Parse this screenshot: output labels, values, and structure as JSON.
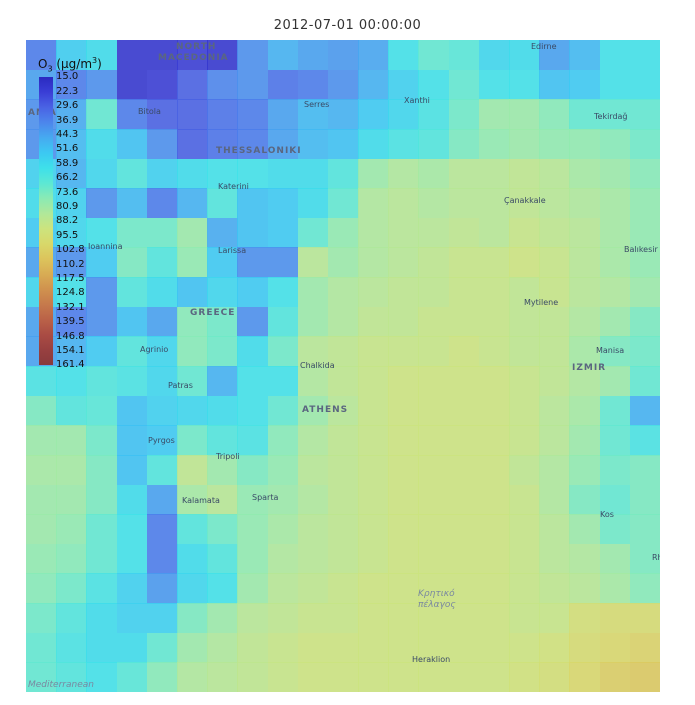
{
  "title": "2012-07-01 00:00:00",
  "legend": {
    "species": "O",
    "subscript": "3",
    "unit_open": " (μg/m",
    "unit_sup": "3",
    "unit_close": ")",
    "ticks": [
      "15.0",
      "22.3",
      "29.6",
      "36.9",
      "44.3",
      "51.6",
      "58.9",
      "66.2",
      "73.6",
      "80.9",
      "88.2",
      "95.5",
      "102.8",
      "110.2",
      "117.5",
      "124.8",
      "132.1",
      "139.5",
      "146.8",
      "154.1",
      "161.4"
    ],
    "colors": [
      "#2a2ac0",
      "#3a3ed6",
      "#4a63e4",
      "#4c86ec",
      "#46aaf0",
      "#3cc8f2",
      "#3ee0ea",
      "#5ce8d4",
      "#8aeab4",
      "#b0e89a",
      "#cce47e",
      "#d8d86a",
      "#dcc45c",
      "#d8ac54",
      "#d0924e",
      "#c67a4c",
      "#ba6248",
      "#aa4c44",
      "#984040",
      "#883a3c"
    ]
  },
  "places": [
    {
      "name": "NORTH",
      "kind": "country"
    },
    {
      "name": "MACEDONIA",
      "kind": "country"
    },
    {
      "name": "GREECE",
      "kind": "country"
    },
    {
      "name": "ATHENS",
      "kind": "country"
    },
    {
      "name": "IZMIR",
      "kind": "country"
    },
    {
      "name": "THESSALONIKI",
      "kind": "country"
    },
    {
      "name": "Edirne",
      "kind": "city"
    },
    {
      "name": "Xanthi",
      "kind": "city"
    },
    {
      "name": "Serres",
      "kind": "city"
    },
    {
      "name": "Bitola",
      "kind": "city"
    },
    {
      "name": "Tekirdağ",
      "kind": "city"
    },
    {
      "name": "Katerini",
      "kind": "city"
    },
    {
      "name": "Çanakkale",
      "kind": "city"
    },
    {
      "name": "Ioannina",
      "kind": "city"
    },
    {
      "name": "Larissa",
      "kind": "city"
    },
    {
      "name": "Balıkesir",
      "kind": "city"
    },
    {
      "name": "Mytilene",
      "kind": "city"
    },
    {
      "name": "Agrinio",
      "kind": "city"
    },
    {
      "name": "Chalkida",
      "kind": "city"
    },
    {
      "name": "Manisa",
      "kind": "city"
    },
    {
      "name": "Patras",
      "kind": "city"
    },
    {
      "name": "Pyrgos",
      "kind": "city"
    },
    {
      "name": "Tripoli",
      "kind": "city"
    },
    {
      "name": "Sparta",
      "kind": "city"
    },
    {
      "name": "Kalamata",
      "kind": "city"
    },
    {
      "name": "Kos",
      "kind": "city"
    },
    {
      "name": "Rho",
      "kind": "city"
    },
    {
      "name": "Heraklion",
      "kind": "city"
    },
    {
      "name": "Κρητικό",
      "kind": "sea"
    },
    {
      "name": "πέλαγος",
      "kind": "sea"
    },
    {
      "name": "Mediterranean",
      "kind": "sea"
    },
    {
      "name": "ANIA",
      "kind": "country"
    }
  ],
  "grid": {
    "cols": 21,
    "rows": 22,
    "values": [
      [
        36,
        55,
        60,
        20,
        20,
        22,
        20,
        40,
        48,
        44,
        42,
        45,
        62,
        70,
        68,
        58,
        60,
        44,
        50,
        62,
        62
      ],
      [
        44,
        36,
        40,
        20,
        22,
        30,
        38,
        40,
        34,
        36,
        40,
        48,
        56,
        62,
        70,
        62,
        62,
        52,
        54,
        62,
        62
      ],
      [
        40,
        46,
        70,
        36,
        30,
        30,
        34,
        36,
        44,
        50,
        48,
        54,
        58,
        64,
        72,
        80,
        80,
        76,
        70,
        70,
        70
      ],
      [
        40,
        50,
        60,
        52,
        40,
        30,
        34,
        36,
        44,
        50,
        52,
        60,
        64,
        66,
        74,
        78,
        80,
        78,
        78,
        76,
        72
      ],
      [
        56,
        48,
        58,
        66,
        56,
        60,
        62,
        62,
        60,
        60,
        66,
        80,
        84,
        82,
        86,
        86,
        88,
        86,
        82,
        80,
        76
      ],
      [
        60,
        56,
        40,
        50,
        36,
        48,
        66,
        52,
        54,
        60,
        70,
        84,
        86,
        84,
        86,
        86,
        88,
        86,
        84,
        82,
        78
      ],
      [
        54,
        58,
        62,
        72,
        72,
        80,
        46,
        52,
        54,
        70,
        78,
        84,
        86,
        86,
        88,
        86,
        90,
        88,
        86,
        82,
        78
      ],
      [
        44,
        40,
        54,
        74,
        66,
        78,
        54,
        40,
        40,
        86,
        80,
        84,
        86,
        88,
        90,
        90,
        92,
        90,
        86,
        82,
        78
      ],
      [
        58,
        62,
        40,
        66,
        60,
        52,
        58,
        54,
        62,
        80,
        84,
        86,
        88,
        88,
        90,
        90,
        88,
        90,
        86,
        84,
        80
      ],
      [
        44,
        36,
        40,
        52,
        44,
        76,
        72,
        40,
        66,
        80,
        84,
        88,
        88,
        90,
        90,
        90,
        88,
        88,
        84,
        80,
        74
      ],
      [
        44,
        48,
        54,
        66,
        58,
        76,
        72,
        60,
        72,
        86,
        88,
        90,
        90,
        90,
        92,
        90,
        88,
        88,
        82,
        74,
        72
      ],
      [
        64,
        62,
        66,
        64,
        58,
        70,
        48,
        62,
        62,
        84,
        88,
        90,
        92,
        92,
        92,
        92,
        90,
        88,
        84,
        80,
        70
      ],
      [
        74,
        66,
        68,
        52,
        56,
        58,
        60,
        62,
        70,
        80,
        86,
        90,
        92,
        92,
        92,
        92,
        90,
        86,
        82,
        70,
        48
      ],
      [
        80,
        80,
        72,
        52,
        54,
        72,
        66,
        64,
        76,
        84,
        88,
        90,
        92,
        92,
        92,
        92,
        90,
        86,
        80,
        70,
        64
      ],
      [
        82,
        82,
        74,
        52,
        66,
        88,
        80,
        74,
        78,
        86,
        88,
        90,
        92,
        92,
        92,
        92,
        88,
        84,
        78,
        72,
        74
      ],
      [
        80,
        80,
        74,
        60,
        44,
        82,
        86,
        78,
        80,
        84,
        88,
        90,
        92,
        92,
        92,
        92,
        90,
        84,
        74,
        70,
        74
      ],
      [
        80,
        78,
        70,
        62,
        36,
        66,
        72,
        78,
        82,
        86,
        88,
        90,
        92,
        92,
        92,
        92,
        90,
        86,
        80,
        72,
        74
      ],
      [
        78,
        76,
        70,
        62,
        36,
        60,
        66,
        78,
        84,
        86,
        88,
        90,
        92,
        92,
        92,
        92,
        90,
        86,
        84,
        80,
        74
      ],
      [
        76,
        72,
        64,
        56,
        42,
        58,
        62,
        80,
        86,
        88,
        90,
        92,
        92,
        92,
        92,
        92,
        90,
        88,
        86,
        82,
        76
      ],
      [
        72,
        66,
        60,
        56,
        56,
        74,
        80,
        86,
        88,
        90,
        90,
        92,
        92,
        92,
        92,
        92,
        90,
        90,
        96,
        98,
        98
      ],
      [
        70,
        64,
        60,
        60,
        70,
        80,
        84,
        88,
        90,
        92,
        92,
        92,
        92,
        92,
        92,
        92,
        92,
        94,
        98,
        100,
        102
      ],
      [
        70,
        66,
        62,
        68,
        76,
        84,
        86,
        88,
        90,
        92,
        92,
        92,
        92,
        92,
        92,
        92,
        94,
        96,
        100,
        104,
        106
      ]
    ]
  }
}
